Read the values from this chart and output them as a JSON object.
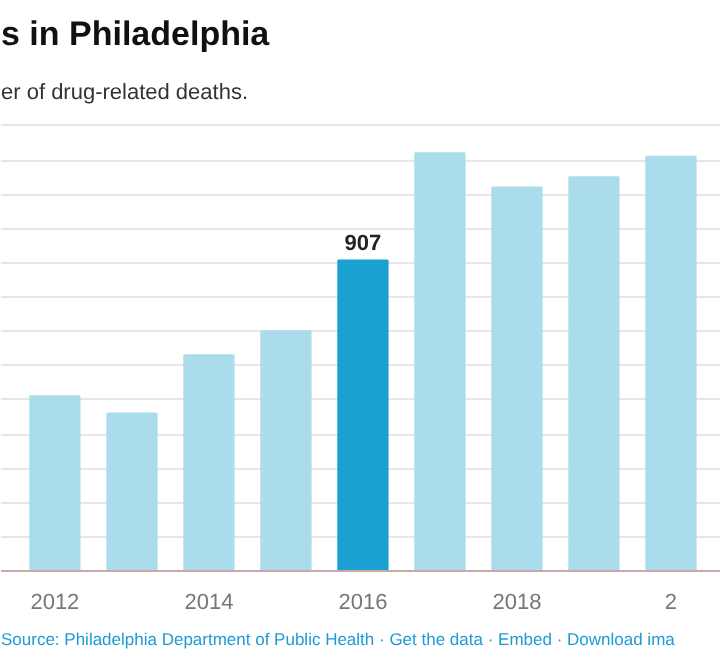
{
  "chart_data": {
    "type": "bar",
    "title": "s in Philadelphia",
    "subtitle": "er of drug-related deaths.",
    "categories": [
      "2012",
      null,
      "2014",
      null,
      "2016",
      null,
      "2018",
      null,
      "2"
    ],
    "values": [
      510,
      460,
      630,
      700,
      907,
      1220,
      1120,
      1150,
      1210
    ],
    "ylim": [
      0,
      1320
    ],
    "yticks": [
      {
        "value": 0,
        "label": null
      },
      {
        "value": 100,
        "label": null
      },
      {
        "value": 200,
        "label": null
      },
      {
        "value": 300,
        "label": null
      },
      {
        "value": 400,
        "label": null
      },
      {
        "value": 500,
        "label": null
      },
      {
        "value": 600,
        "label": null
      },
      {
        "value": 700,
        "label": null
      },
      {
        "value": 800,
        "label": null
      },
      {
        "value": 900,
        "label": null
      },
      {
        "value": 1000,
        "label": null
      },
      {
        "value": 1100,
        "label": null
      },
      {
        "value": 1200,
        "label": null
      },
      {
        "value": 1300,
        "label": null
      }
    ],
    "tick_labels": "x",
    "colors": [
      "#abdcec",
      "#abdcec",
      "#abdcec",
      "#abdcec",
      "#1ba1d1",
      "#abdcec",
      "#abdcec",
      "#abdcec",
      "#abdcec"
    ],
    "value_labels": [
      null,
      null,
      null,
      null,
      "907",
      null,
      null,
      null,
      null
    ],
    "grid": "y",
    "annotations": [
      "Source: Philadelphia Department of Public Health · Get the data · Embed · Download ima"
    ]
  }
}
